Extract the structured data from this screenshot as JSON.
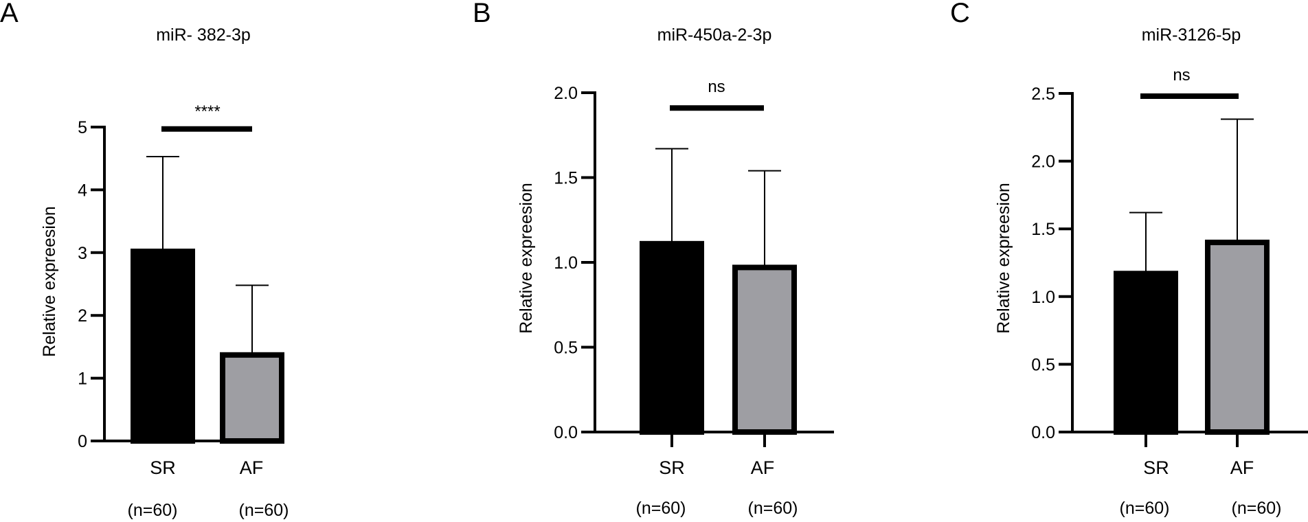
{
  "chart_data": [
    {
      "type": "bar",
      "panel": "A",
      "title": "miR- 382-3p",
      "ylabel": "Relative expreesion",
      "xlabel": "",
      "ylim": [
        0,
        5
      ],
      "yticks": [
        "0",
        "1",
        "2",
        "3",
        "4",
        "5"
      ],
      "categories": [
        "SR",
        "AF"
      ],
      "sample_sizes": [
        "(n=60)",
        "(n=60)"
      ],
      "values": [
        3.02,
        1.37
      ],
      "error_upper": [
        4.53,
        2.48
      ],
      "bar_colors": [
        "#000000",
        "#9e9ea3"
      ],
      "significance": "****",
      "significance_level": 4.97
    },
    {
      "type": "bar",
      "panel": "B",
      "title": "miR-450a-2-3p",
      "ylabel": "Relative expreesion",
      "xlabel": "",
      "ylim": [
        0,
        2
      ],
      "yticks": [
        "0.0",
        "0.5",
        "1.0",
        "1.5",
        "2.0"
      ],
      "categories": [
        "SR",
        "AF"
      ],
      "sample_sizes": [
        "(n=60)",
        "(n=60)"
      ],
      "values": [
        1.11,
        0.97
      ],
      "error_upper": [
        1.67,
        1.54
      ],
      "bar_colors": [
        "#000000",
        "#9e9ea3"
      ],
      "significance": "ns",
      "significance_level": 1.91
    },
    {
      "type": "bar",
      "panel": "C",
      "title": "miR-3126-5p",
      "ylabel": "Relative expreesion",
      "xlabel": "",
      "ylim": [
        0,
        2.5
      ],
      "yticks": [
        "0.0",
        "0.5",
        "1.0",
        "1.5",
        "2.0",
        "2.5"
      ],
      "categories": [
        "SR",
        "AF"
      ],
      "sample_sizes": [
        "(n=60)",
        "(n=60)"
      ],
      "values": [
        1.17,
        1.4
      ],
      "error_upper": [
        1.62,
        2.31
      ],
      "bar_colors": [
        "#000000",
        "#9e9ea3"
      ],
      "significance": "ns",
      "significance_level": 2.48
    }
  ]
}
